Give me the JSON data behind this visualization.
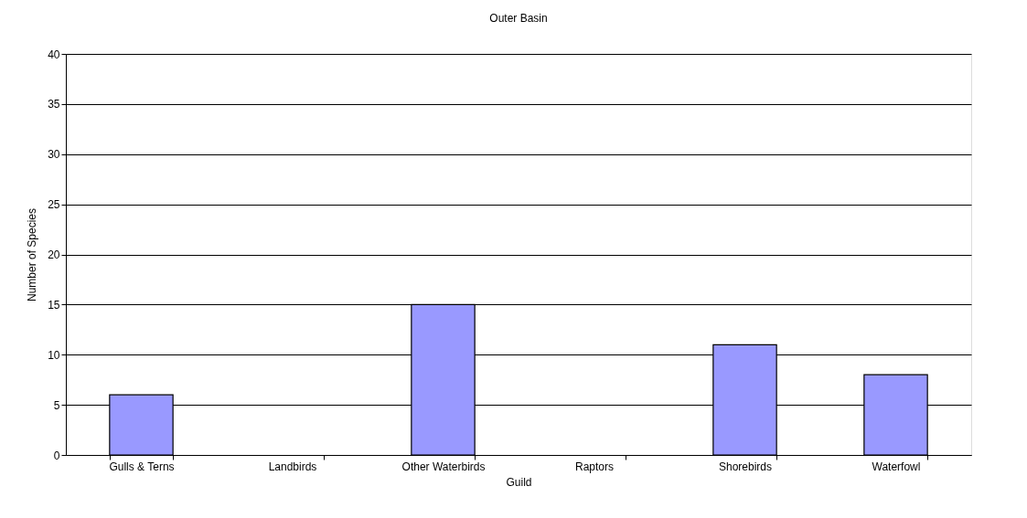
{
  "chart_data": {
    "type": "bar",
    "title": "Outer Basin",
    "xlabel": "Guild",
    "ylabel": "Number of Species",
    "categories": [
      "Gulls & Terns",
      "Landbirds",
      "Other Waterbirds",
      "Raptors",
      "Shorebirds",
      "Waterfowl"
    ],
    "values": [
      6,
      0,
      15,
      0,
      11,
      8
    ],
    "color": "#9999ff",
    "ylim": [
      0,
      40
    ],
    "yticks": [
      0,
      5,
      10,
      15,
      20,
      25,
      30,
      35,
      40
    ],
    "grid": "y"
  }
}
